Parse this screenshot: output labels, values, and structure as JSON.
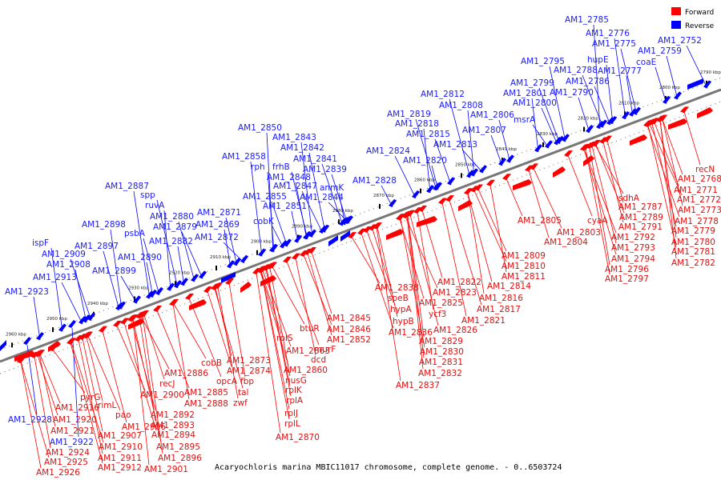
{
  "caption": "Acaryochloris marina MBIC11017 chromosome, complete genome. - 0..6503724",
  "legend": {
    "forward": {
      "label": "Forward",
      "color": "#ff0000"
    },
    "reverse": {
      "label": "Reverse",
      "color": "#0000ff"
    }
  },
  "ruler_ticks": [
    "2790 kbp",
    "2800 kbp",
    "2810 kbp",
    "2820 kbp",
    "2830 kbp",
    "2840 kbp",
    "2850 kbp",
    "2860 kbp",
    "2870 kbp",
    "2880 kbp",
    "2890 kbp",
    "2900 kbp",
    "2910 kbp",
    "2920 kbp",
    "2930 kbp",
    "2940 kbp",
    "2950 kbp",
    "2960 kbp"
  ],
  "reverse_genes": [
    "AM1_2785",
    "AM1_2776",
    "AM1_2775",
    "AM1_2752",
    "hupE",
    "AM1_2759",
    "AM1_2795",
    "AM1_2788",
    "AM1_2777",
    "coaE",
    "AM1_2786",
    "AM1_2799",
    "AM1_2801",
    "AM1_2790",
    "AM1_2800",
    "AM1_2812",
    "AM1_2808",
    "AM1_2806",
    "msrA",
    "AM1_2819",
    "AM1_2818",
    "AM1_2807",
    "AM1_2815",
    "AM1_2813",
    "AM1_2850",
    "AM1_2843",
    "AM1_2842",
    "AM1_2824",
    "AM1_2820",
    "AM1_2858",
    "frhB",
    "AM1_2841",
    "rph",
    "AM1_2848",
    "AM1_2839",
    "AM1_2847",
    "anmK",
    "AM1_2828",
    "AM1_2855",
    "AM1_2844",
    "AM1_2851",
    "cobK",
    "AM1_2887",
    "spp",
    "ruvA",
    "AM1_2871",
    "AM1_2880",
    "AM1_2879",
    "AM1_2869",
    "AM1_2898",
    "psbA",
    "AM1_2872",
    "AM1_2882",
    "ispF",
    "AM1_2897",
    "AM1_2909",
    "AM1_2890",
    "AM1_2908",
    "AM1_2899",
    "AM1_2913",
    "AM1_2923",
    "AM1_2928",
    "AM1_2922"
  ],
  "forward_genes": [
    "recN",
    "AM1_2768",
    "AM1_2771",
    "sdhA",
    "AM1_2772",
    "AM1_2787",
    "AM1_2773",
    "cyaA",
    "AM1_2789",
    "AM1_2778",
    "AM1_2805",
    "AM1_2791",
    "AM1_2779",
    "AM1_2803",
    "AM1_2792",
    "AM1_2780",
    "AM1_2804",
    "AM1_2793",
    "AM1_2781",
    "AM1_2794",
    "AM1_2782",
    "AM1_2796",
    "AM1_2797",
    "AM1_2809",
    "AM1_2810",
    "AM1_2811",
    "AM1_2822",
    "AM1_2814",
    "AM1_2838",
    "AM1_2823",
    "AM1_2816",
    "speB",
    "AM1_2825",
    "hypA",
    "AM1_2817",
    "ycf3",
    "hypB",
    "AM1_2821",
    "AM1_2826",
    "AM1_2836",
    "AM1_2829",
    "AM1_2845",
    "AM1_2830",
    "AM1_2846",
    "btuR",
    "AM1_2831",
    "rplS",
    "AM1_2852",
    "AM1_2863",
    "murF",
    "AM1_2832",
    "dcd",
    "AM1_2837",
    "AM1_2860",
    "cobB",
    "AM1_2873",
    "nusG",
    "AM1_2874",
    "AM1_2886",
    "opcA",
    "fbp",
    "recJ",
    "rplK",
    "tal",
    "AM1_2885",
    "AM1_2888",
    "zwf",
    "rplA",
    "AM1_2900",
    "pyrG",
    "rimL",
    "AM1_2916",
    "AM1_2892",
    "rplJ",
    "pao",
    "AM1_2893",
    "AM1_2920",
    "AM1_2906",
    "rplL",
    "AM1_2894",
    "AM1_2921",
    "AM1_2907",
    "AM1_2870",
    "AM1_2895",
    "AM1_2910",
    "AM1_2924",
    "AM1_2896",
    "AM1_2911",
    "AM1_2925",
    "AM1_2912",
    "AM1_2901",
    "AM1_2926"
  ]
}
